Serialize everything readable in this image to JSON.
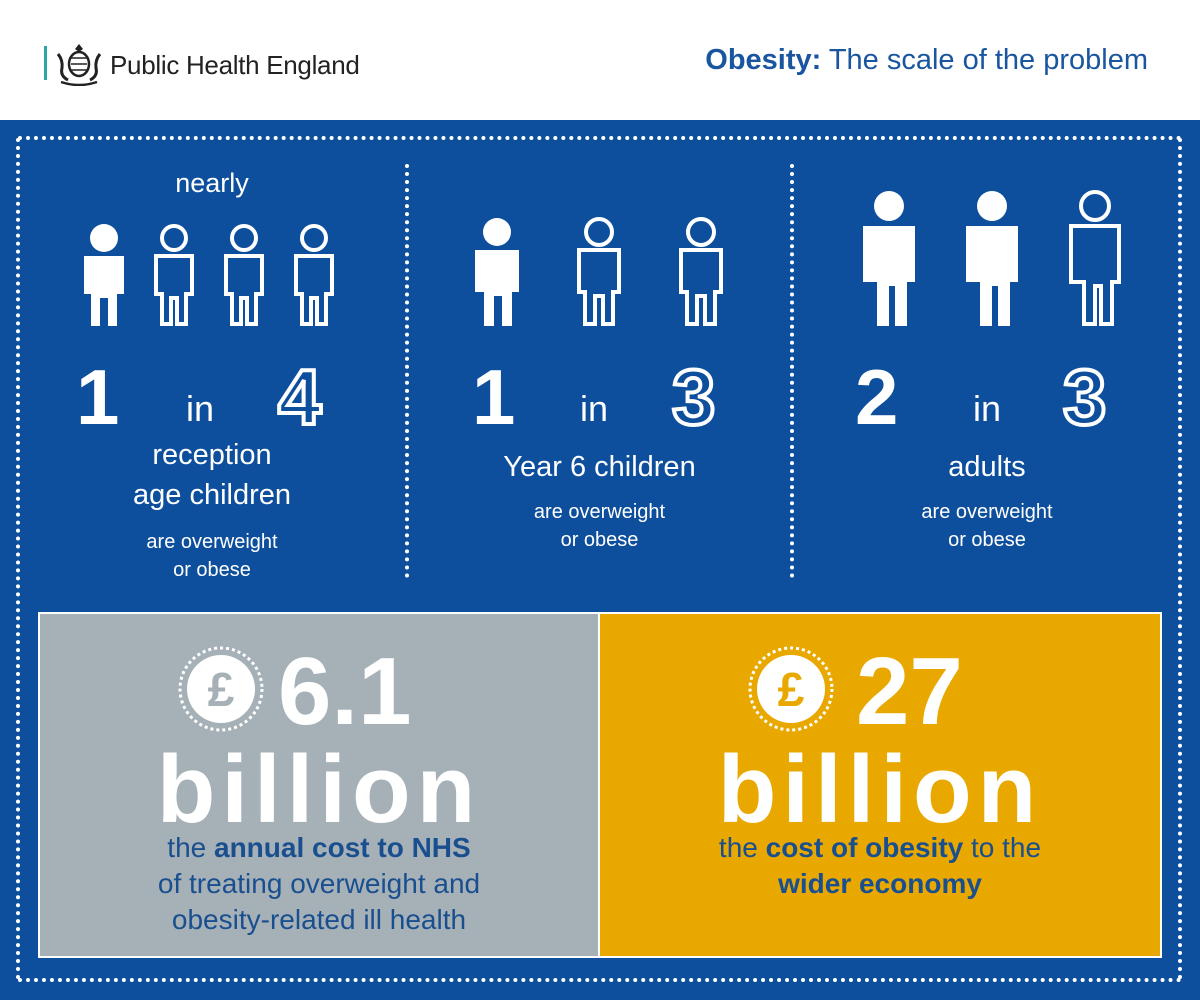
{
  "header": {
    "org": "Public Health England",
    "title_bold": "Obesity:",
    "title_rest": " The scale of the problem"
  },
  "stats": [
    {
      "prefix": "nearly",
      "num_a": "1",
      "in": "in",
      "num_b": "4",
      "label_1": "reception",
      "label_2": "age children",
      "sub_1": "are overweight",
      "sub_2": "or obese"
    },
    {
      "num_a": "1",
      "in": "in",
      "num_b": "3",
      "label_1": "Year 6 children",
      "sub_1": "are overweight",
      "sub_2": "or obese"
    },
    {
      "num_a": "2",
      "in": "in",
      "num_b": "3",
      "label_1": "adults",
      "sub_1": "are overweight",
      "sub_2": "or obese"
    }
  ],
  "costs": [
    {
      "amount": "6.1",
      "unit": "billion",
      "d1_pre": "the ",
      "d1_bold": "annual cost to NHS",
      "d1_post": "",
      "d2": "of treating overweight and",
      "d3": "obesity-related ill health"
    },
    {
      "amount": "27",
      "unit": "billion",
      "d1_pre": "the ",
      "d1_bold": "cost of obesity",
      "d1_post": " to the",
      "d2_bold": "wider economy"
    }
  ],
  "icons": {
    "crest": "royal-crest-icon",
    "person": "person-icon",
    "coin": "pound-coin-icon"
  },
  "colors": {
    "panel_blue": "#0d4f9c",
    "grey_box": "#a6b0b7",
    "gold_box": "#e8a800",
    "title_blue": "#1a56a0",
    "accent_teal": "#2aa6a8"
  }
}
